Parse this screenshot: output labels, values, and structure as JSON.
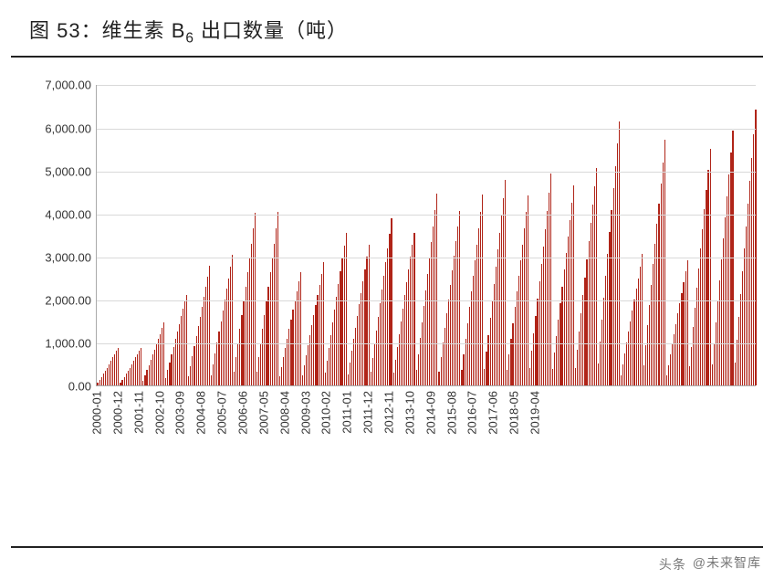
{
  "title": {
    "prefix": "图 53：维生素 B",
    "subscript": "6",
    "suffix": " 出口数量（吨）",
    "fontsize": 22,
    "color": "#222222",
    "rule_color": "#222222"
  },
  "watermark": {
    "icon": "头条",
    "text": " @未来智库",
    "color": "#777777",
    "fontsize": 14
  },
  "chart": {
    "type": "bar",
    "background_color": "#ffffff",
    "grid_color": "#d9d9d9",
    "axis_color": "#aaaaaa",
    "bar_color": "#b02418",
    "ylim": [
      0,
      7000
    ],
    "ytick_step": 1000,
    "ytick_labels": [
      "0.00",
      "1,000.00",
      "2,000.00",
      "3,000.00",
      "4,000.00",
      "5,000.00",
      "6,000.00",
      "7,000.00"
    ],
    "label_fontsize": 13,
    "label_color": "#333333",
    "x_labels": [
      "2000-01",
      "2000-12",
      "2001-11",
      "2002-10",
      "2003-09",
      "2004-08",
      "2005-07",
      "2006-06",
      "2007-05",
      "2008-04",
      "2009-03",
      "2010-02",
      "2011-01",
      "2011-12",
      "2012-11",
      "2013-10",
      "2014-09",
      "2015-08",
      "2016-07",
      "2017-06",
      "2018-05",
      "2019-04"
    ],
    "x_label_rotation": -90,
    "bar_width_ratio": 0.55,
    "values": [
      70,
      140,
      210,
      280,
      350,
      420,
      500,
      580,
      660,
      740,
      820,
      880,
      70,
      140,
      210,
      280,
      350,
      420,
      500,
      580,
      660,
      740,
      820,
      880,
      120,
      240,
      360,
      480,
      600,
      720,
      840,
      960,
      1080,
      1200,
      1340,
      1470,
      180,
      360,
      540,
      720,
      900,
      1080,
      1260,
      1440,
      1620,
      1800,
      1950,
      2100,
      230,
      460,
      690,
      920,
      1150,
      1380,
      1610,
      1840,
      2070,
      2300,
      2540,
      2780,
      250,
      500,
      750,
      1000,
      1250,
      1500,
      1750,
      2000,
      2250,
      2500,
      2770,
      3040,
      330,
      660,
      990,
      1320,
      1650,
      1980,
      2310,
      2640,
      2970,
      3300,
      3650,
      4010,
      330,
      660,
      990,
      1320,
      1650,
      1980,
      2310,
      2640,
      2970,
      3300,
      3650,
      4030,
      220,
      440,
      660,
      880,
      1100,
      1320,
      1540,
      1760,
      1980,
      2200,
      2420,
      2640,
      235,
      470,
      705,
      940,
      1175,
      1410,
      1645,
      1880,
      2115,
      2350,
      2600,
      2870,
      295,
      590,
      885,
      1180,
      1475,
      1770,
      2065,
      2360,
      2655,
      2950,
      3250,
      3550,
      270,
      540,
      810,
      1080,
      1350,
      1620,
      1890,
      2160,
      2430,
      2700,
      3000,
      3280,
      320,
      640,
      960,
      1280,
      1600,
      1920,
      2240,
      2560,
      2880,
      3200,
      3540,
      3880,
      300,
      600,
      900,
      1200,
      1500,
      1800,
      2100,
      2400,
      2700,
      3000,
      3280,
      3560,
      370,
      740,
      1110,
      1480,
      1850,
      2220,
      2590,
      2960,
      3330,
      3700,
      4080,
      4470,
      335,
      670,
      1005,
      1340,
      1675,
      2010,
      2345,
      2680,
      3015,
      3350,
      3700,
      4070,
      365,
      730,
      1095,
      1460,
      1825,
      2190,
      2555,
      2920,
      3285,
      3650,
      4030,
      4450,
      395,
      790,
      1185,
      1580,
      1975,
      2370,
      2765,
      3160,
      3555,
      3950,
      4360,
      4790,
      365,
      730,
      1095,
      1460,
      1825,
      2190,
      2555,
      2920,
      3285,
      3650,
      4030,
      4420,
      405,
      810,
      1215,
      1620,
      2025,
      2430,
      2835,
      3240,
      3645,
      4050,
      4480,
      4920,
      385,
      770,
      1155,
      1540,
      1925,
      2310,
      2695,
      3080,
      3465,
      3850,
      4250,
      4660,
      420,
      840,
      1260,
      1680,
      2100,
      2520,
      2940,
      3360,
      3780,
      4200,
      4640,
      5050,
      510,
      1020,
      1530,
      2040,
      2550,
      3060,
      3570,
      4080,
      4590,
      5100,
      5620,
      6130,
      250,
      500,
      750,
      1000,
      1250,
      1500,
      1750,
      2000,
      2250,
      2500,
      2770,
      3060,
      470,
      940,
      1410,
      1880,
      2350,
      2820,
      3290,
      3760,
      4230,
      4700,
      5190,
      5720,
      240,
      480,
      720,
      960,
      1200,
      1440,
      1680,
      1920,
      2160,
      2400,
      2650,
      2920,
      455,
      910,
      1365,
      1820,
      2275,
      2730,
      3185,
      3640,
      4095,
      4550,
      5020,
      5500,
      490,
      980,
      1470,
      1960,
      2450,
      2940,
      3430,
      3920,
      4410,
      4900,
      5410,
      5920,
      530,
      1060,
      1590,
      2120,
      2650,
      3180,
      3710,
      4240,
      4770,
      5300,
      5850,
      6420
    ]
  }
}
